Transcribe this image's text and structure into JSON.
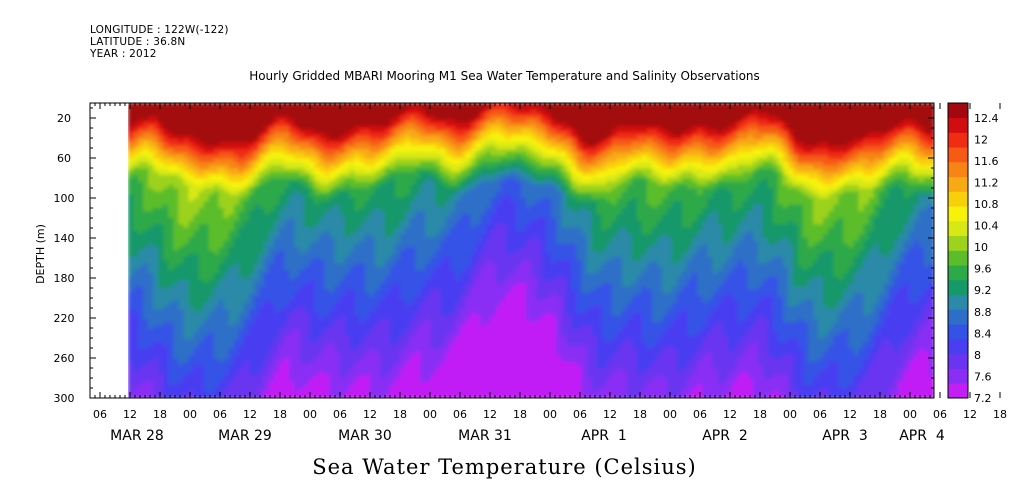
{
  "header": {
    "longitude": "LONGITUDE : 122W(-122)",
    "latitude": "LATITUDE : 36.8N",
    "year": "YEAR : 2012"
  },
  "title": "Hourly Gridded MBARI Mooring M1 Sea Water Temperature and Salinity Observations",
  "bottom_title": "Sea Water Temperature (Celsius)",
  "chart_data": {
    "type": "heatmap",
    "ylabel": "DEPTH (m)",
    "ylim": [
      300,
      5
    ],
    "y_ticks": [
      20,
      60,
      100,
      140,
      180,
      220,
      260,
      300
    ],
    "x_hour_ticks": [
      "06",
      "12",
      "18",
      "00",
      "06",
      "12",
      "18",
      "00",
      "06",
      "12",
      "18",
      "00",
      "06",
      "12",
      "18",
      "00",
      "06",
      "12",
      "18",
      "00",
      "06",
      "12",
      "18",
      "00",
      "06",
      "12",
      "18",
      "00",
      "06",
      "12",
      "18",
      "00"
    ],
    "x_day_labels": [
      "MAR 28",
      "MAR 29",
      "MAR 30",
      "MAR 31",
      "APR  1",
      "APR  2",
      "APR  3",
      "APR  4"
    ],
    "data_start": "MAR 28 12:00",
    "colorbar": {
      "levels": [
        7.2,
        7.6,
        8,
        8.4,
        8.8,
        9.2,
        9.6,
        10,
        10.4,
        10.8,
        11.2,
        11.6,
        12,
        12.4
      ],
      "colors": [
        "#c11ff5",
        "#8a2ef5",
        "#6a34f0",
        "#4a3ef2",
        "#3552e6",
        "#2d6fc8",
        "#2b8aa8",
        "#15986a",
        "#2ea94a",
        "#5cbd2a",
        "#9dd21f",
        "#d8e814",
        "#f7f20a",
        "#f9cf0c",
        "#f8aa14",
        "#f78415",
        "#f65a14",
        "#f02c12",
        "#d20d10",
        "#a3080f"
      ]
    },
    "profile": {
      "note_units": "Celsius",
      "surface_range": [
        11.2,
        12.6
      ],
      "bottom_range": [
        7.2,
        7.8
      ]
    }
  }
}
